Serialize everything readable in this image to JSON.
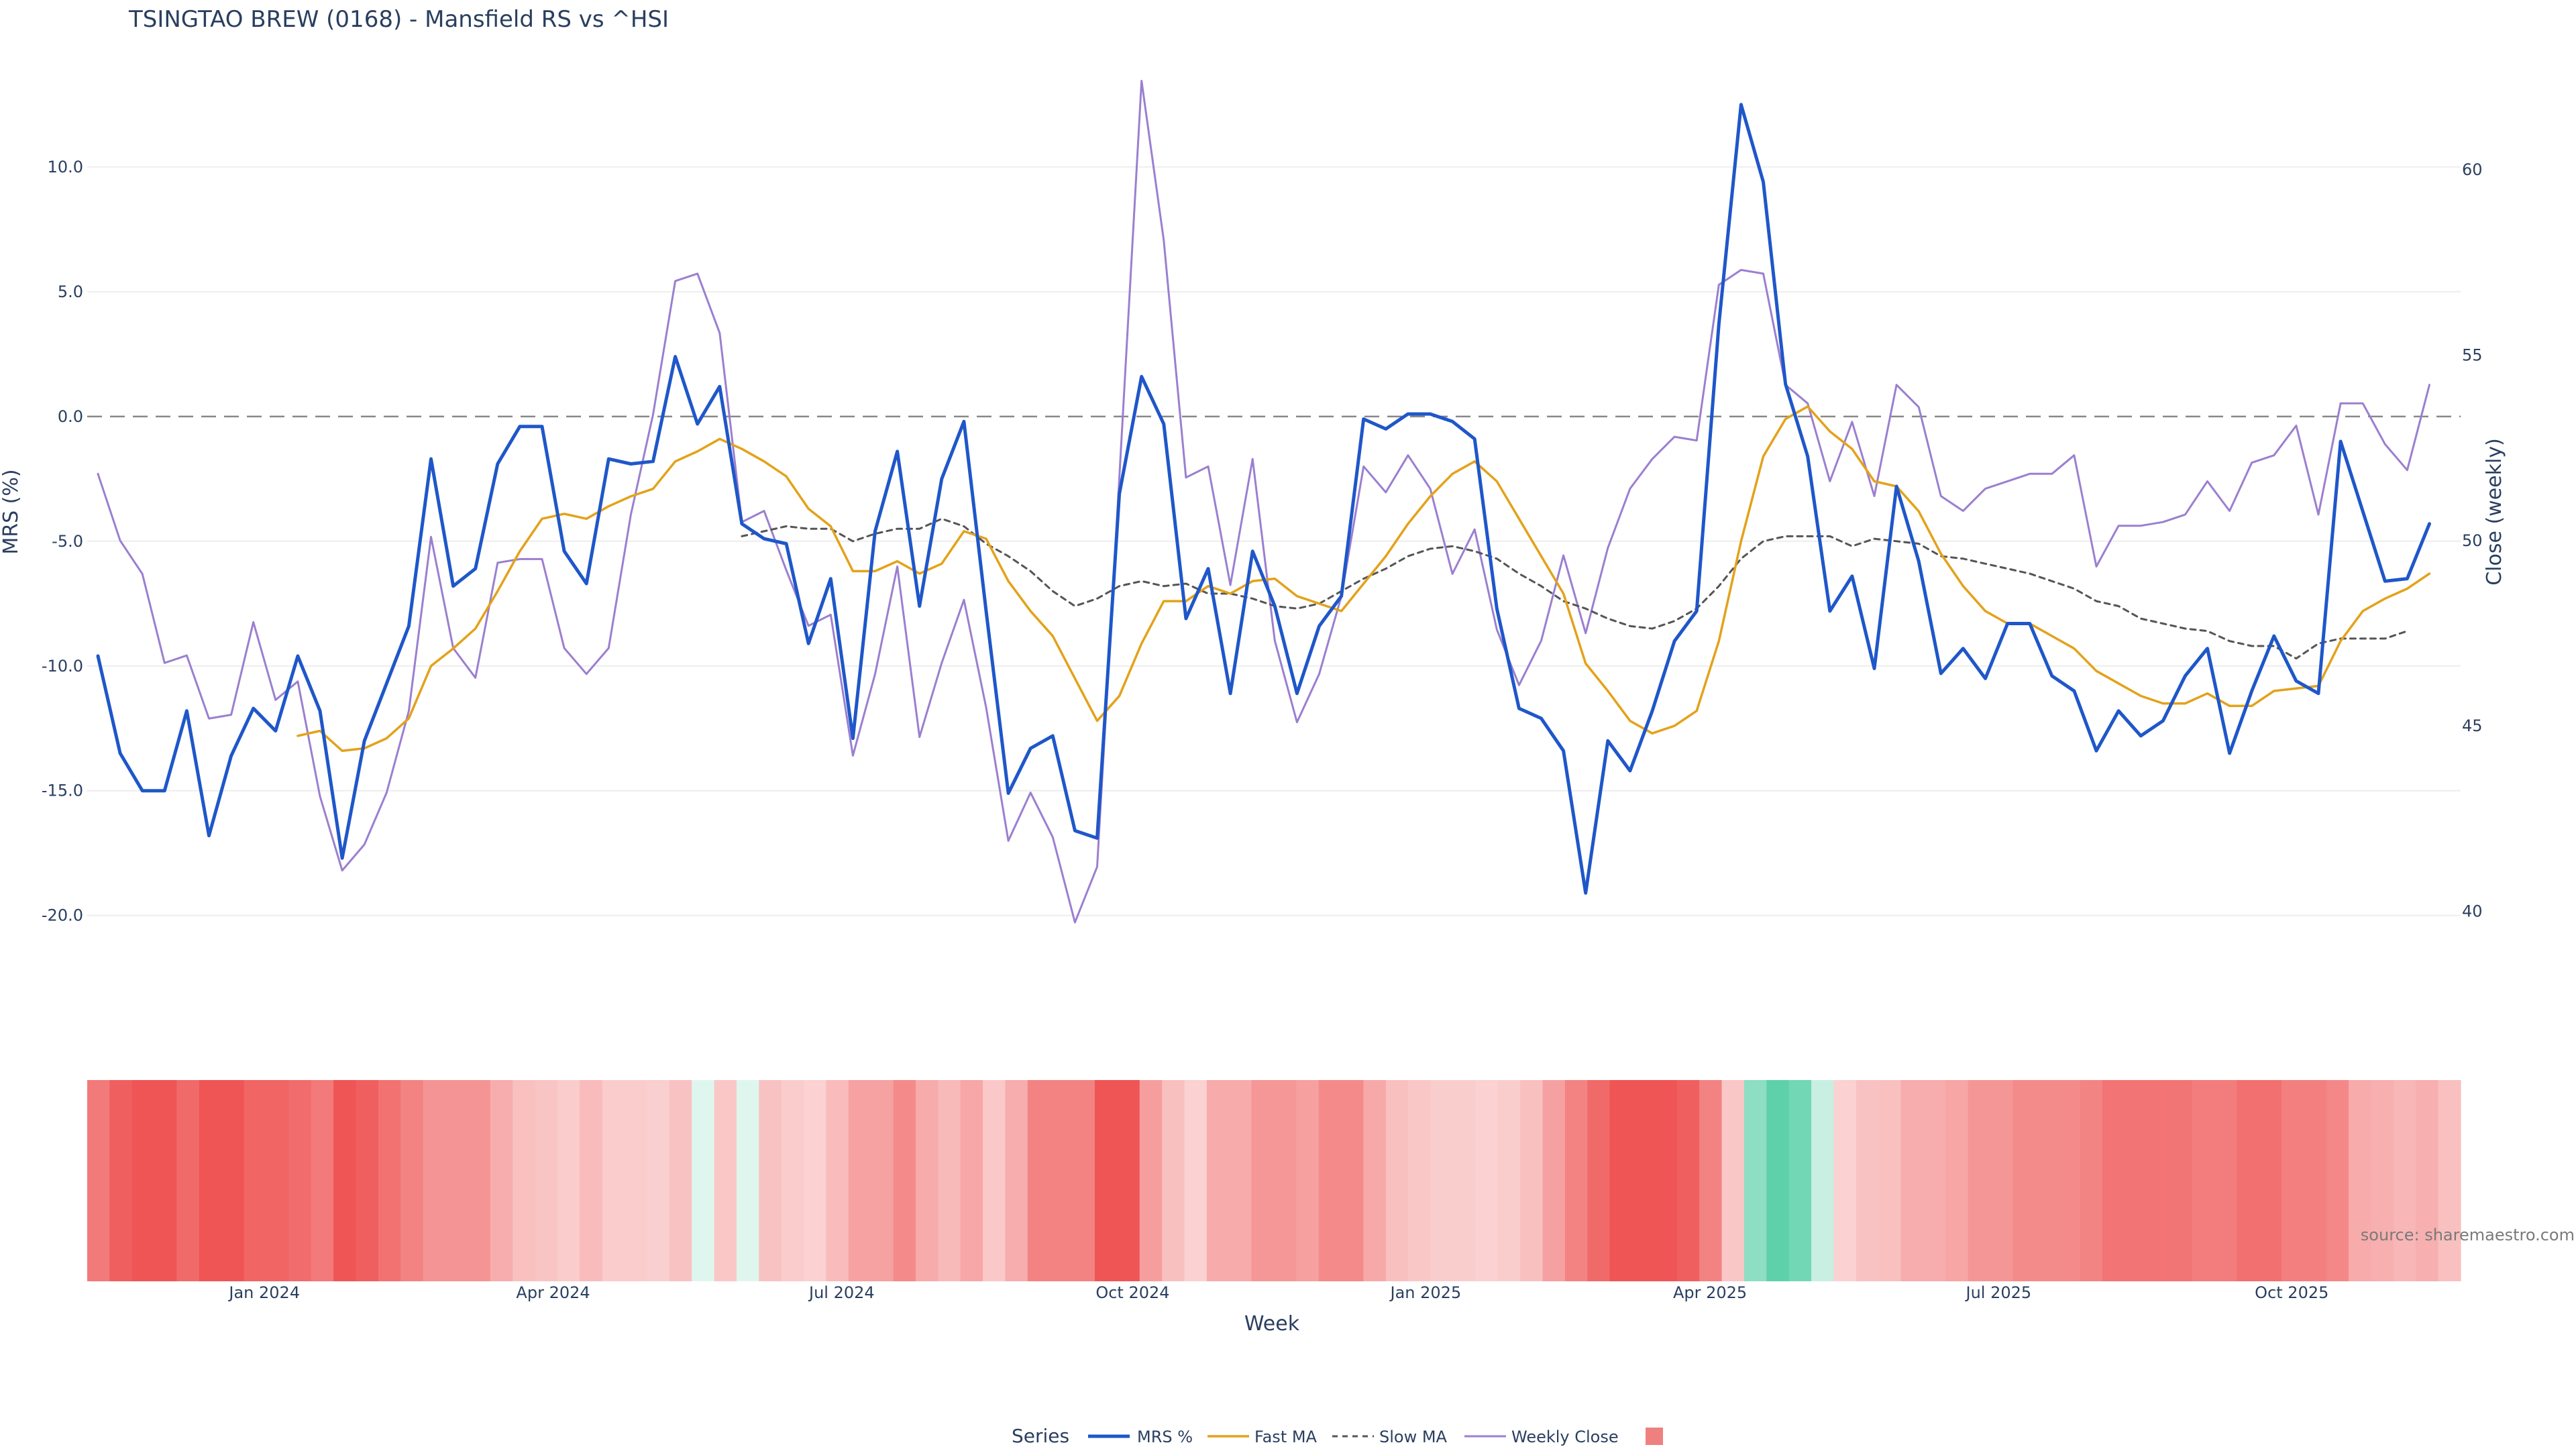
{
  "chart_data": {
    "type": "line",
    "title": "TSINGTAO BREW (0168) - Mansfield RS vs ^HSI",
    "xlabel": "Week",
    "ylabel": "MRS (%)",
    "y2label": "Close (weekly)",
    "source": "source: sharemaestro.com",
    "legend_title": "Series",
    "legend_placement": "bottom-center",
    "grid": true,
    "ylim": [
      -23.1,
      13.6
    ],
    "y2lim": [
      37.8,
      62.5
    ],
    "y_ticks": [
      {
        "value": 10,
        "label": "10.0"
      },
      {
        "value": 5,
        "label": "5.0"
      },
      {
        "value": 0,
        "label": "0.0"
      },
      {
        "value": -5,
        "label": "-5.0"
      },
      {
        "value": -10,
        "label": "-10.0"
      },
      {
        "value": -15,
        "label": "-15.0"
      },
      {
        "value": -20,
        "label": "-20.0"
      }
    ],
    "y2_ticks": [
      {
        "value": 60,
        "label": "60"
      },
      {
        "value": 55,
        "label": "55"
      },
      {
        "value": 50,
        "label": "50"
      },
      {
        "value": 45,
        "label": "45"
      },
      {
        "value": 40,
        "label": "40"
      }
    ],
    "x_ticks": [
      {
        "week": 7.5,
        "label": "Jan 2024"
      },
      {
        "week": 20.5,
        "label": "Apr 2024"
      },
      {
        "week": 33.5,
        "label": "Jul 2024"
      },
      {
        "week": 46.6,
        "label": "Oct 2024"
      },
      {
        "week": 59.8,
        "label": "Jan 2025"
      },
      {
        "week": 72.6,
        "label": "Apr 2025"
      },
      {
        "week": 85.6,
        "label": "Jul 2025"
      },
      {
        "week": 98.8,
        "label": "Oct 2025"
      }
    ],
    "weeks": 107,
    "colors": {
      "mrs": "#1f57c9",
      "fast": "#e3a21a",
      "slow": "#555555",
      "close": "#9b7fd0",
      "zero": "#888888",
      "grid": "#eeeeee",
      "legend_swatch": "#ef8080"
    },
    "series": [
      {
        "name": "MRS %",
        "axis": "y",
        "start": 0,
        "values": [
          -9.6,
          -13.5,
          -15,
          -15,
          -11.8,
          -16.8,
          -13.6,
          -11.7,
          -12.6,
          -9.6,
          -11.8,
          -17.7,
          -13,
          -10.7,
          -8.4,
          -1.7,
          -6.8,
          -6.1,
          -1.9,
          -0.4,
          -0.4,
          -5.4,
          -6.7,
          -1.7,
          -1.9,
          -1.8,
          2.4,
          -0.3,
          1.2,
          -4.3,
          -4.9,
          -5.1,
          -9.1,
          -6.5,
          -12.9,
          -4.6,
          -1.4,
          -7.6,
          -2.5,
          -0.2,
          -7.8,
          -15.1,
          -13.3,
          -12.8,
          -16.6,
          -16.9,
          -3.1,
          1.6,
          -0.3,
          -8.1,
          -6.1,
          -11.1,
          -5.4,
          -7.6,
          -11.1,
          -8.4,
          -7.2,
          -0.1,
          -0.5,
          0.1,
          0.1,
          -0.2,
          -0.9,
          -7.7,
          -11.7,
          -12.1,
          -13.4,
          -19.1,
          -13,
          -14.2,
          -11.8,
          -9,
          -7.8,
          3.7,
          12.5,
          9.4,
          1.3,
          -1.6,
          -7.8,
          -6.4,
          -10.1,
          -2.8,
          -5.8,
          -10.3,
          -9.3,
          -10.5,
          -8.3,
          -8.3,
          -10.4,
          -11,
          -13.4,
          -11.8,
          -12.8,
          -12.2,
          -10.4,
          -9.3,
          -13.5,
          -11,
          -8.8,
          -10.6,
          -11.1,
          -1,
          -3.8,
          -6.6,
          -6.5,
          -4.3
        ]
      },
      {
        "name": "Fast MA",
        "axis": "y",
        "start": 9,
        "values": [
          -12.8,
          -12.6,
          -13.4,
          -13.3,
          -12.9,
          -12.1,
          -10,
          -9.3,
          -8.5,
          -7,
          -5.4,
          -4.1,
          -3.9,
          -4.1,
          -3.6,
          -3.2,
          -2.9,
          -1.8,
          -1.4,
          -0.9,
          -1.3,
          -1.8,
          -2.4,
          -3.7,
          -4.4,
          -6.2,
          -6.2,
          -5.8,
          -6.3,
          -5.9,
          -4.6,
          -4.9,
          -6.6,
          -7.8,
          -8.8,
          -10.5,
          -12.2,
          -11.2,
          -9.1,
          -7.4,
          -7.4,
          -6.8,
          -7.1,
          -6.6,
          -6.5,
          -7.2,
          -7.5,
          -7.8,
          -6.7,
          -5.6,
          -4.3,
          -3.2,
          -2.3,
          -1.8,
          -2.6,
          -4.1,
          -5.6,
          -7.1,
          -9.9,
          -11,
          -12.2,
          -12.7,
          -12.4,
          -11.8,
          -9,
          -5,
          -1.6,
          -0.1,
          0.4,
          -0.6,
          -1.3,
          -2.6,
          -2.8,
          -3.8,
          -5.5,
          -6.8,
          -7.8,
          -8.3,
          -8.3,
          -8.8,
          -9.3,
          -10.2,
          -10.7,
          -11.2,
          -11.5,
          -11.5,
          -11.1,
          -11.6,
          -11.6,
          -11,
          -10.9,
          -10.8,
          -9,
          -7.8,
          -7.3,
          -6.9,
          -6.3
        ]
      },
      {
        "name": "Slow MA",
        "axis": "y",
        "start": 29,
        "dashed": true,
        "values": [
          -4.8,
          -4.6,
          -4.4,
          -4.5,
          -4.5,
          -5,
          -4.7,
          -4.5,
          -4.5,
          -4.1,
          -4.4,
          -5.1,
          -5.6,
          -6.2,
          -7,
          -7.6,
          -7.3,
          -6.8,
          -6.6,
          -6.8,
          -6.7,
          -7.1,
          -7.1,
          -7.3,
          -7.6,
          -7.7,
          -7.5,
          -7,
          -6.5,
          -6.1,
          -5.6,
          -5.3,
          -5.2,
          -5.4,
          -5.7,
          -6.3,
          -6.8,
          -7.4,
          -7.7,
          -8.1,
          -8.4,
          -8.5,
          -8.2,
          -7.7,
          -6.8,
          -5.7,
          -5,
          -4.8,
          -4.8,
          -4.8,
          -5.2,
          -4.9,
          -5,
          -5.1,
          -5.6,
          -5.7,
          -5.9,
          -6.1,
          -6.3,
          -6.6,
          -6.9,
          -7.4,
          -7.6,
          -8.1,
          -8.3,
          -8.5,
          -8.6,
          -9,
          -9.2,
          -9.2,
          -9.7,
          -9.1,
          -8.9,
          -8.9,
          -8.9,
          -8.6
        ]
      },
      {
        "name": "Weekly Close",
        "axis": "y2",
        "start": 0,
        "values": [
          51.8,
          50,
          49.1,
          46.7,
          46.9,
          45.2,
          45.3,
          47.8,
          45.7,
          46.2,
          43.1,
          41.1,
          41.8,
          43.2,
          45.4,
          50.1,
          47.1,
          46.3,
          49.4,
          49.5,
          49.5,
          47.1,
          46.4,
          47.1,
          50.7,
          53.4,
          57,
          57.2,
          55.6,
          50.5,
          50.8,
          49.2,
          47.7,
          48,
          44.2,
          46.4,
          49.3,
          44.7,
          46.7,
          48.4,
          45.5,
          41.9,
          43.2,
          42,
          39.7,
          41.2,
          51.7,
          62.4,
          58.1,
          51.7,
          52,
          48.8,
          52.2,
          47.3,
          45.1,
          46.4,
          48.5,
          52,
          51.3,
          52.3,
          51.4,
          49.1,
          50.3,
          47.6,
          46.1,
          47.3,
          49.6,
          47.5,
          49.8,
          51.4,
          52.2,
          52.8,
          52.7,
          56.9,
          57.3,
          57.2,
          54.2,
          53.7,
          51.6,
          53.2,
          51.2,
          54.2,
          53.6,
          51.2,
          50.8,
          51.4,
          51.6,
          51.8,
          51.8,
          52.3,
          49.3,
          50.4,
          50.4,
          50.5,
          50.7,
          51.6,
          50.8,
          52.1,
          52.3,
          53.1,
          50.7,
          53.7,
          53.7,
          52.6,
          51.9,
          54.2
        ]
      }
    ],
    "heatmap": {
      "type": "heatmap",
      "description": "weekly MRS colour band",
      "values": [
        -9.6,
        -13.5,
        -15,
        -15,
        -11.8,
        -16.8,
        -16.8,
        -12.5,
        -12.5,
        -11.5,
        -9.6,
        -17.7,
        -13.5,
        -10.7,
        -8.4,
        -6.5,
        -6.5,
        -6.5,
        -4,
        -2.5,
        -2.2,
        -1.7,
        -2.8,
        -1.7,
        -1.7,
        -1.5,
        -2.3,
        0.3,
        -2,
        0.4,
        -2.3,
        -1.7,
        -1.4,
        -2.8,
        -5,
        -5,
        -7.6,
        -4.2,
        -3,
        -4.5,
        -1.9,
        -4,
        -8.5,
        -8.5,
        -8.5,
        -16.8,
        -16.8,
        -5.4,
        -2.5,
        -1.4,
        -4.2,
        -4.2,
        -6.1,
        -6.1,
        -5.2,
        -7.6,
        -7.6,
        -4.3,
        -2.5,
        -2,
        -1.6,
        -1.6,
        -1.4,
        -1.6,
        -2.5,
        -5.1,
        -8.5,
        -11.8,
        -19.1,
        -19.1,
        -19.1,
        -13.5,
        -8.5,
        -2,
        3.7,
        8,
        5,
        1.3,
        -1.4,
        -2.3,
        -2.5,
        -4,
        -4,
        -4.7,
        -6.2,
        -6.2,
        -7.5,
        -7.5,
        -7.5,
        -8.3,
        -10.4,
        -10.4,
        -10.4,
        -10.2,
        -9.3,
        -9.3,
        -11,
        -11,
        -9,
        -9,
        -7.9,
        -4.2,
        -3.8,
        -3.2,
        -3.8,
        -2.5
      ],
      "colors": {
        "negative": "#ef5555",
        "neutral": "#ffffff",
        "positive": "#5fd1aa"
      }
    }
  }
}
